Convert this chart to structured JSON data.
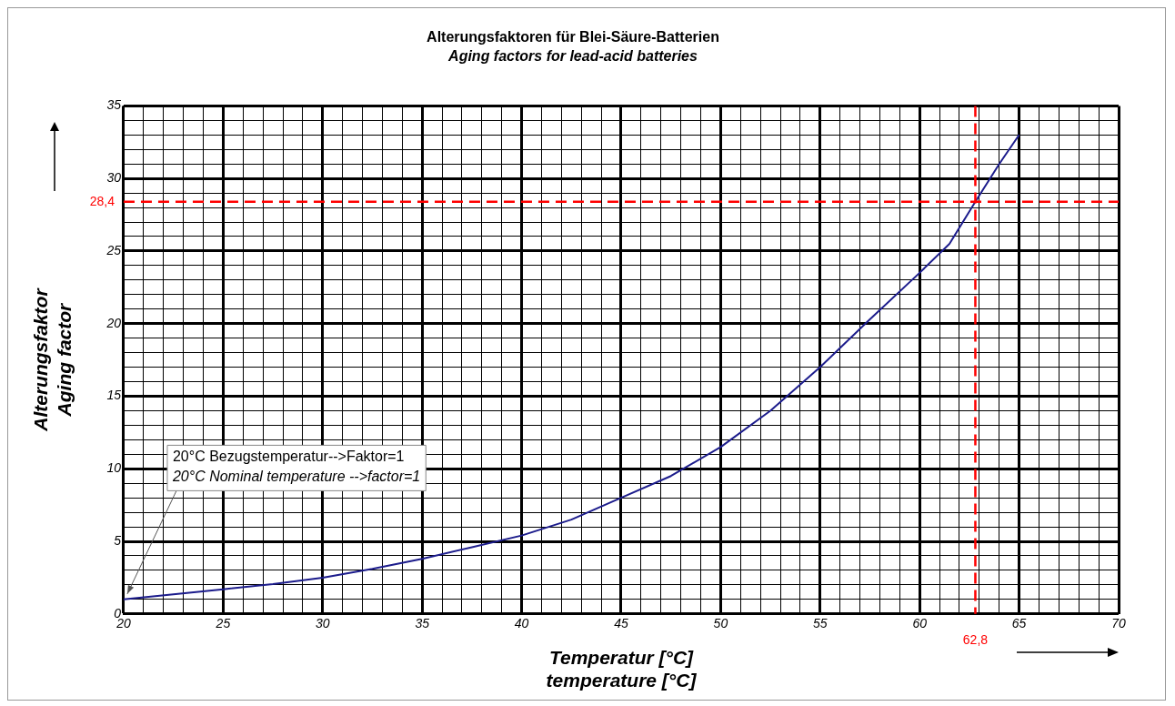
{
  "chart_data": {
    "type": "line",
    "title": "Alterungsfaktoren für Blei-Säure-Batterien",
    "subtitle": "Aging factors for lead-acid batteries",
    "xlabel": "Temperatur [°C]\ntemperature [°C]",
    "ylabel": "Alterungsfaktor\nAging factor",
    "x": [
      20,
      22.5,
      25,
      27.5,
      30,
      32.5,
      35,
      37.5,
      40,
      42.5,
      45,
      47.5,
      50,
      52.5,
      55,
      57.5,
      60,
      61.5,
      62.8,
      64,
      65
    ],
    "series": [
      {
        "color": "#1c1c8c",
        "values": [
          1,
          1.35,
          1.7,
          2.05,
          2.5,
          3.1,
          3.8,
          4.6,
          5.4,
          6.5,
          8,
          9.5,
          11.5,
          14,
          17,
          20.3,
          23.5,
          25.5,
          28.4,
          31,
          33
        ]
      }
    ],
    "xlim": [
      20,
      70
    ],
    "ylim": [
      0,
      35
    ],
    "xticks": [
      20,
      {
        "value": 21,
        "label": null
      },
      {
        "value": 22,
        "label": null
      },
      {
        "value": 23,
        "label": null
      },
      {
        "value": 24,
        "label": null
      },
      25,
      {
        "value": 26,
        "label": null
      },
      {
        "value": 27,
        "label": null
      },
      {
        "value": 28,
        "label": null
      },
      {
        "value": 29,
        "label": null
      },
      30,
      {
        "value": 31,
        "label": null
      },
      {
        "value": 32,
        "label": null
      },
      {
        "value": 33,
        "label": null
      },
      {
        "value": 34,
        "label": null
      },
      35,
      {
        "value": 36,
        "label": null
      },
      {
        "value": 37,
        "label": null
      },
      {
        "value": 38,
        "label": null
      },
      {
        "value": 39,
        "label": null
      },
      40,
      {
        "value": 41,
        "label": null
      },
      {
        "value": 42,
        "label": null
      },
      {
        "value": 43,
        "label": null
      },
      {
        "value": 44,
        "label": null
      },
      45,
      {
        "value": 46,
        "label": null
      },
      {
        "value": 47,
        "label": null
      },
      {
        "value": 48,
        "label": null
      },
      {
        "value": 49,
        "label": null
      },
      50,
      {
        "value": 51,
        "label": null
      },
      {
        "value": 52,
        "label": null
      },
      {
        "value": 53,
        "label": null
      },
      {
        "value": 54,
        "label": null
      },
      55,
      {
        "value": 56,
        "label": null
      },
      {
        "value": 57,
        "label": null
      },
      {
        "value": 58,
        "label": null
      },
      {
        "value": 59,
        "label": null
      },
      60,
      {
        "value": 61,
        "label": null
      },
      {
        "value": 62,
        "label": null
      },
      {
        "value": 63,
        "label": null
      },
      {
        "value": 64,
        "label": null
      },
      65,
      {
        "value": 66,
        "label": null
      },
      {
        "value": 67,
        "label": null
      },
      {
        "value": 68,
        "label": null
      },
      {
        "value": 69,
        "label": null
      },
      70
    ],
    "yticks": [
      0,
      {
        "value": 1,
        "label": null
      },
      {
        "value": 2,
        "label": null
      },
      {
        "value": 3,
        "label": null
      },
      {
        "value": 4,
        "label": null
      },
      5,
      {
        "value": 6,
        "label": null
      },
      {
        "value": 7,
        "label": null
      },
      {
        "value": 8,
        "label": null
      },
      {
        "value": 9,
        "label": null
      },
      10,
      {
        "value": 11,
        "label": null
      },
      {
        "value": 12,
        "label": null
      },
      {
        "value": 13,
        "label": null
      },
      {
        "value": 14,
        "label": null
      },
      15,
      {
        "value": 16,
        "label": null
      },
      {
        "value": 17,
        "label": null
      },
      {
        "value": 18,
        "label": null
      },
      {
        "value": 19,
        "label": null
      },
      20,
      {
        "value": 21,
        "label": null
      },
      {
        "value": 22,
        "label": null
      },
      {
        "value": 23,
        "label": null
      },
      {
        "value": 24,
        "label": null
      },
      25,
      {
        "value": 26,
        "label": null
      },
      {
        "value": 27,
        "label": null
      },
      {
        "value": 28,
        "label": null
      },
      {
        "value": 29,
        "label": null
      },
      30,
      {
        "value": 31,
        "label": null
      },
      {
        "value": 32,
        "label": null
      },
      {
        "value": 33,
        "label": null
      },
      {
        "value": 34,
        "label": null
      },
      35
    ],
    "ref_lines": [
      {
        "axis": "x",
        "value": 62.8,
        "label": "62,8",
        "color": "#ff0000",
        "line_style": "dashed"
      },
      {
        "axis": "y",
        "value": 28.4,
        "label": "28,4",
        "color": "#ff0000",
        "line_style": "dashed"
      }
    ],
    "annotations": [
      {
        "text": "20°C Bezugstemperatur-->Faktor=1\n20°C Nominal temperature -->factor=1",
        "x": 20,
        "y": 1
      }
    ],
    "grid": true,
    "legend": false,
    "marker": "none",
    "line_style": "solid"
  }
}
